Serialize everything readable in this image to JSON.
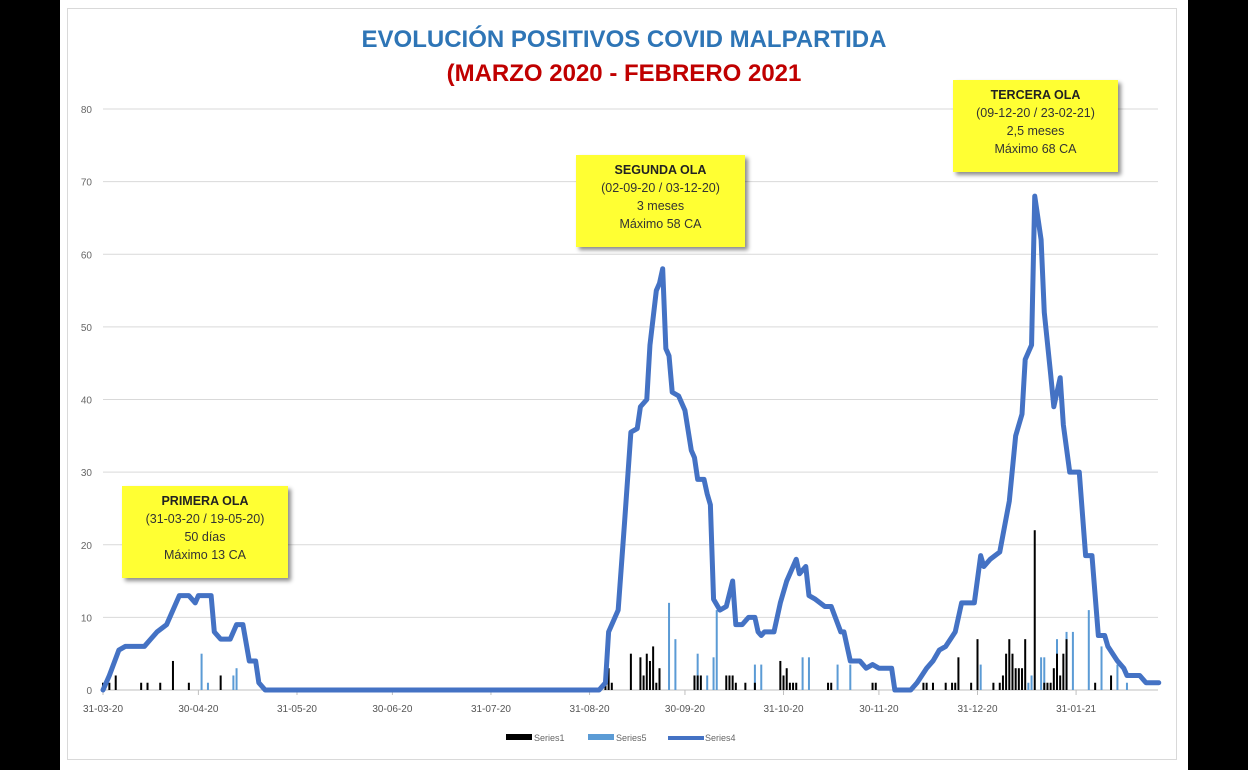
{
  "chart_data": {
    "type": "bar+line",
    "title": "EVOLUCIÓN POSITIVOS COVID MALPARTIDA",
    "subtitle": "(MARZO 2020 - FEBRERO 2021",
    "xlabel": "",
    "ylabel": "",
    "ylim": [
      0,
      80
    ],
    "yticks": [
      0,
      10,
      20,
      30,
      40,
      50,
      60,
      70,
      80
    ],
    "xlim": [
      "2020-03-31",
      "2021-02-26"
    ],
    "xtick_labels": [
      "31-03-20",
      "30-04-20",
      "31-05-20",
      "30-06-20",
      "31-07-20",
      "31-08-20",
      "30-09-20",
      "31-10-20",
      "30-11-20",
      "31-12-20",
      "31-01-21"
    ],
    "xtick_dates": [
      "2020-03-31",
      "2020-04-30",
      "2020-05-31",
      "2020-06-30",
      "2020-07-31",
      "2020-08-31",
      "2020-09-30",
      "2020-10-31",
      "2020-11-30",
      "2020-12-31",
      "2021-01-31"
    ],
    "grid": "horizontal",
    "legend_placement": "bottom",
    "series": [
      {
        "name": "Series1",
        "kind": "bar",
        "color": "#000000",
        "points": [
          [
            "2020-03-31",
            1
          ],
          [
            "2020-04-02",
            1
          ],
          [
            "2020-04-04",
            2
          ],
          [
            "2020-04-12",
            1
          ],
          [
            "2020-04-14",
            1
          ],
          [
            "2020-04-18",
            1
          ],
          [
            "2020-04-22",
            4
          ],
          [
            "2020-04-27",
            1
          ],
          [
            "2020-05-07",
            2
          ],
          [
            "2020-09-05",
            2
          ],
          [
            "2020-09-06",
            3
          ],
          [
            "2020-09-07",
            1
          ],
          [
            "2020-09-13",
            5
          ],
          [
            "2020-09-16",
            4.5
          ],
          [
            "2020-09-17",
            2
          ],
          [
            "2020-09-18",
            5
          ],
          [
            "2020-09-19",
            4
          ],
          [
            "2020-09-20",
            6
          ],
          [
            "2020-09-21",
            1
          ],
          [
            "2020-09-22",
            3
          ],
          [
            "2020-10-03",
            2
          ],
          [
            "2020-10-04",
            2
          ],
          [
            "2020-10-05",
            2
          ],
          [
            "2020-10-13",
            2
          ],
          [
            "2020-10-14",
            2
          ],
          [
            "2020-10-15",
            2
          ],
          [
            "2020-10-16",
            1
          ],
          [
            "2020-10-19",
            1
          ],
          [
            "2020-10-22",
            1
          ],
          [
            "2020-10-30",
            4
          ],
          [
            "2020-10-31",
            2
          ],
          [
            "2020-11-01",
            3
          ],
          [
            "2020-11-02",
            1
          ],
          [
            "2020-11-03",
            1
          ],
          [
            "2020-11-04",
            1
          ],
          [
            "2020-11-14",
            1
          ],
          [
            "2020-11-15",
            1
          ],
          [
            "2020-11-28",
            1
          ],
          [
            "2020-11-29",
            1
          ],
          [
            "2020-12-14",
            1
          ],
          [
            "2020-12-15",
            1
          ],
          [
            "2020-12-17",
            1
          ],
          [
            "2020-12-21",
            1
          ],
          [
            "2020-12-23",
            1
          ],
          [
            "2020-12-24",
            1
          ],
          [
            "2020-12-25",
            4.5
          ],
          [
            "2020-12-29",
            1
          ],
          [
            "2020-12-31",
            7
          ],
          [
            "2021-01-05",
            1
          ],
          [
            "2021-01-07",
            1
          ],
          [
            "2021-01-08",
            2
          ],
          [
            "2021-01-09",
            5
          ],
          [
            "2021-01-10",
            7
          ],
          [
            "2021-01-11",
            5
          ],
          [
            "2021-01-12",
            3
          ],
          [
            "2021-01-13",
            3
          ],
          [
            "2021-01-14",
            3
          ],
          [
            "2021-01-15",
            7
          ],
          [
            "2021-01-18",
            22
          ],
          [
            "2021-01-21",
            1
          ],
          [
            "2021-01-22",
            1
          ],
          [
            "2021-01-23",
            1
          ],
          [
            "2021-01-24",
            3
          ],
          [
            "2021-01-25",
            5
          ],
          [
            "2021-01-26",
            2
          ],
          [
            "2021-01-27",
            5
          ],
          [
            "2021-01-28",
            7
          ],
          [
            "2021-02-06",
            1
          ],
          [
            "2021-02-11",
            2
          ]
        ]
      },
      {
        "name": "Series5",
        "kind": "bar",
        "color": "#5b9bd5",
        "points": [
          [
            "2020-05-01",
            5
          ],
          [
            "2020-05-03",
            1
          ],
          [
            "2020-05-11",
            2
          ],
          [
            "2020-05-12",
            3
          ],
          [
            "2020-09-25",
            12
          ],
          [
            "2020-09-27",
            7
          ],
          [
            "2020-10-04",
            5
          ],
          [
            "2020-10-07",
            2
          ],
          [
            "2020-10-09",
            4.5
          ],
          [
            "2020-10-10",
            11
          ],
          [
            "2020-10-22",
            3.5
          ],
          [
            "2020-10-24",
            3.5
          ],
          [
            "2020-11-06",
            4.5
          ],
          [
            "2020-11-08",
            4.5
          ],
          [
            "2020-11-17",
            3.5
          ],
          [
            "2020-11-21",
            3.5
          ],
          [
            "2021-01-01",
            3.5
          ],
          [
            "2021-01-16",
            1
          ],
          [
            "2021-01-17",
            2
          ],
          [
            "2021-01-20",
            4.5
          ],
          [
            "2021-01-21",
            4.5
          ],
          [
            "2021-01-25",
            7
          ],
          [
            "2021-01-28",
            8
          ],
          [
            "2021-01-30",
            8
          ],
          [
            "2021-02-04",
            11
          ],
          [
            "2021-02-08",
            6
          ],
          [
            "2021-02-13",
            3.5
          ],
          [
            "2021-02-16",
            1
          ]
        ]
      },
      {
        "name": "Series4",
        "kind": "line",
        "color": "#4472c4",
        "points": [
          [
            "2020-03-31",
            0
          ],
          [
            "2020-04-02",
            2
          ],
          [
            "2020-04-05",
            5.5
          ],
          [
            "2020-04-07",
            6
          ],
          [
            "2020-04-13",
            6
          ],
          [
            "2020-04-15",
            7
          ],
          [
            "2020-04-17",
            8
          ],
          [
            "2020-04-20",
            9
          ],
          [
            "2020-04-24",
            13
          ],
          [
            "2020-04-27",
            13
          ],
          [
            "2020-04-29",
            12
          ],
          [
            "2020-04-30",
            13
          ],
          [
            "2020-05-04",
            13
          ],
          [
            "2020-05-05",
            8
          ],
          [
            "2020-05-07",
            7
          ],
          [
            "2020-05-10",
            7
          ],
          [
            "2020-05-12",
            9
          ],
          [
            "2020-05-14",
            9
          ],
          [
            "2020-05-16",
            4
          ],
          [
            "2020-05-18",
            4
          ],
          [
            "2020-05-19",
            1
          ],
          [
            "2020-05-21",
            0
          ],
          [
            "2020-09-03",
            0
          ],
          [
            "2020-09-05",
            1
          ],
          [
            "2020-09-06",
            8
          ],
          [
            "2020-09-09",
            11
          ],
          [
            "2020-09-11",
            23
          ],
          [
            "2020-09-13",
            35.5
          ],
          [
            "2020-09-15",
            36
          ],
          [
            "2020-09-16",
            39
          ],
          [
            "2020-09-18",
            40
          ],
          [
            "2020-09-19",
            47.5
          ],
          [
            "2020-09-21",
            55
          ],
          [
            "2020-09-22",
            56
          ],
          [
            "2020-09-23",
            58
          ],
          [
            "2020-09-24",
            47
          ],
          [
            "2020-09-25",
            46
          ],
          [
            "2020-09-26",
            41
          ],
          [
            "2020-09-28",
            40.5
          ],
          [
            "2020-09-30",
            38.5
          ],
          [
            "2020-10-02",
            33
          ],
          [
            "2020-10-03",
            32
          ],
          [
            "2020-10-04",
            29
          ],
          [
            "2020-10-06",
            29
          ],
          [
            "2020-10-07",
            27
          ],
          [
            "2020-10-08",
            25.5
          ],
          [
            "2020-10-09",
            12.5
          ],
          [
            "2020-10-11",
            11
          ],
          [
            "2020-10-13",
            11.5
          ],
          [
            "2020-10-15",
            15
          ],
          [
            "2020-10-16",
            9
          ],
          [
            "2020-10-18",
            9
          ],
          [
            "2020-10-20",
            10
          ],
          [
            "2020-10-22",
            10
          ],
          [
            "2020-10-23",
            8
          ],
          [
            "2020-10-24",
            7.5
          ],
          [
            "2020-10-25",
            8
          ],
          [
            "2020-10-28",
            8
          ],
          [
            "2020-10-30",
            12
          ],
          [
            "2020-11-01",
            15
          ],
          [
            "2020-11-04",
            18
          ],
          [
            "2020-11-05",
            16
          ],
          [
            "2020-11-07",
            17
          ],
          [
            "2020-11-08",
            13
          ],
          [
            "2020-11-10",
            12.5
          ],
          [
            "2020-11-13",
            11.5
          ],
          [
            "2020-11-15",
            11.5
          ],
          [
            "2020-11-18",
            8
          ],
          [
            "2020-11-19",
            8
          ],
          [
            "2020-11-21",
            4
          ],
          [
            "2020-11-24",
            4
          ],
          [
            "2020-11-26",
            3
          ],
          [
            "2020-11-28",
            3.5
          ],
          [
            "2020-11-30",
            3
          ],
          [
            "2020-12-04",
            3
          ],
          [
            "2020-12-05",
            0
          ],
          [
            "2020-12-10",
            0
          ],
          [
            "2020-12-12",
            1
          ],
          [
            "2020-12-15",
            3
          ],
          [
            "2020-12-17",
            4
          ],
          [
            "2020-12-19",
            5.5
          ],
          [
            "2020-12-21",
            6
          ],
          [
            "2020-12-24",
            8
          ],
          [
            "2020-12-26",
            12
          ],
          [
            "2020-12-30",
            12
          ],
          [
            "2021-01-01",
            18.5
          ],
          [
            "2021-01-02",
            17
          ],
          [
            "2021-01-04",
            18
          ],
          [
            "2021-01-07",
            19
          ],
          [
            "2021-01-10",
            26
          ],
          [
            "2021-01-12",
            35
          ],
          [
            "2021-01-14",
            38
          ],
          [
            "2021-01-15",
            45.5
          ],
          [
            "2021-01-17",
            47.5
          ],
          [
            "2021-01-18",
            68
          ],
          [
            "2021-01-20",
            62
          ],
          [
            "2021-01-21",
            52
          ],
          [
            "2021-01-23",
            43.5
          ],
          [
            "2021-01-24",
            39
          ],
          [
            "2021-01-26",
            43
          ],
          [
            "2021-01-27",
            36.5
          ],
          [
            "2021-01-29",
            30
          ],
          [
            "2021-02-01",
            30
          ],
          [
            "2021-02-03",
            18.5
          ],
          [
            "2021-02-05",
            18.5
          ],
          [
            "2021-02-07",
            7.5
          ],
          [
            "2021-02-09",
            7.5
          ],
          [
            "2021-02-10",
            6
          ],
          [
            "2021-02-13",
            4
          ],
          [
            "2021-02-15",
            3
          ],
          [
            "2021-02-16",
            2
          ],
          [
            "2021-02-20",
            2
          ],
          [
            "2021-02-22",
            1
          ],
          [
            "2021-02-26",
            1
          ]
        ]
      }
    ],
    "annotations": [
      {
        "title": "PRIMERA OLA",
        "range": "(31-03-20 / 19-05-20)",
        "duration": "50 días",
        "max": "Máximo 13 CA"
      },
      {
        "title": "SEGUNDA OLA",
        "range": "(02-09-20 / 03-12-20)",
        "duration": "3 meses",
        "max": "Máximo 58 CA"
      },
      {
        "title": "TERCERA OLA",
        "range": "(09-12-20 / 23-02-21)",
        "duration": "2,5 meses",
        "max": "Máximo 68 CA"
      }
    ],
    "annotation_color": "#ffff33"
  }
}
